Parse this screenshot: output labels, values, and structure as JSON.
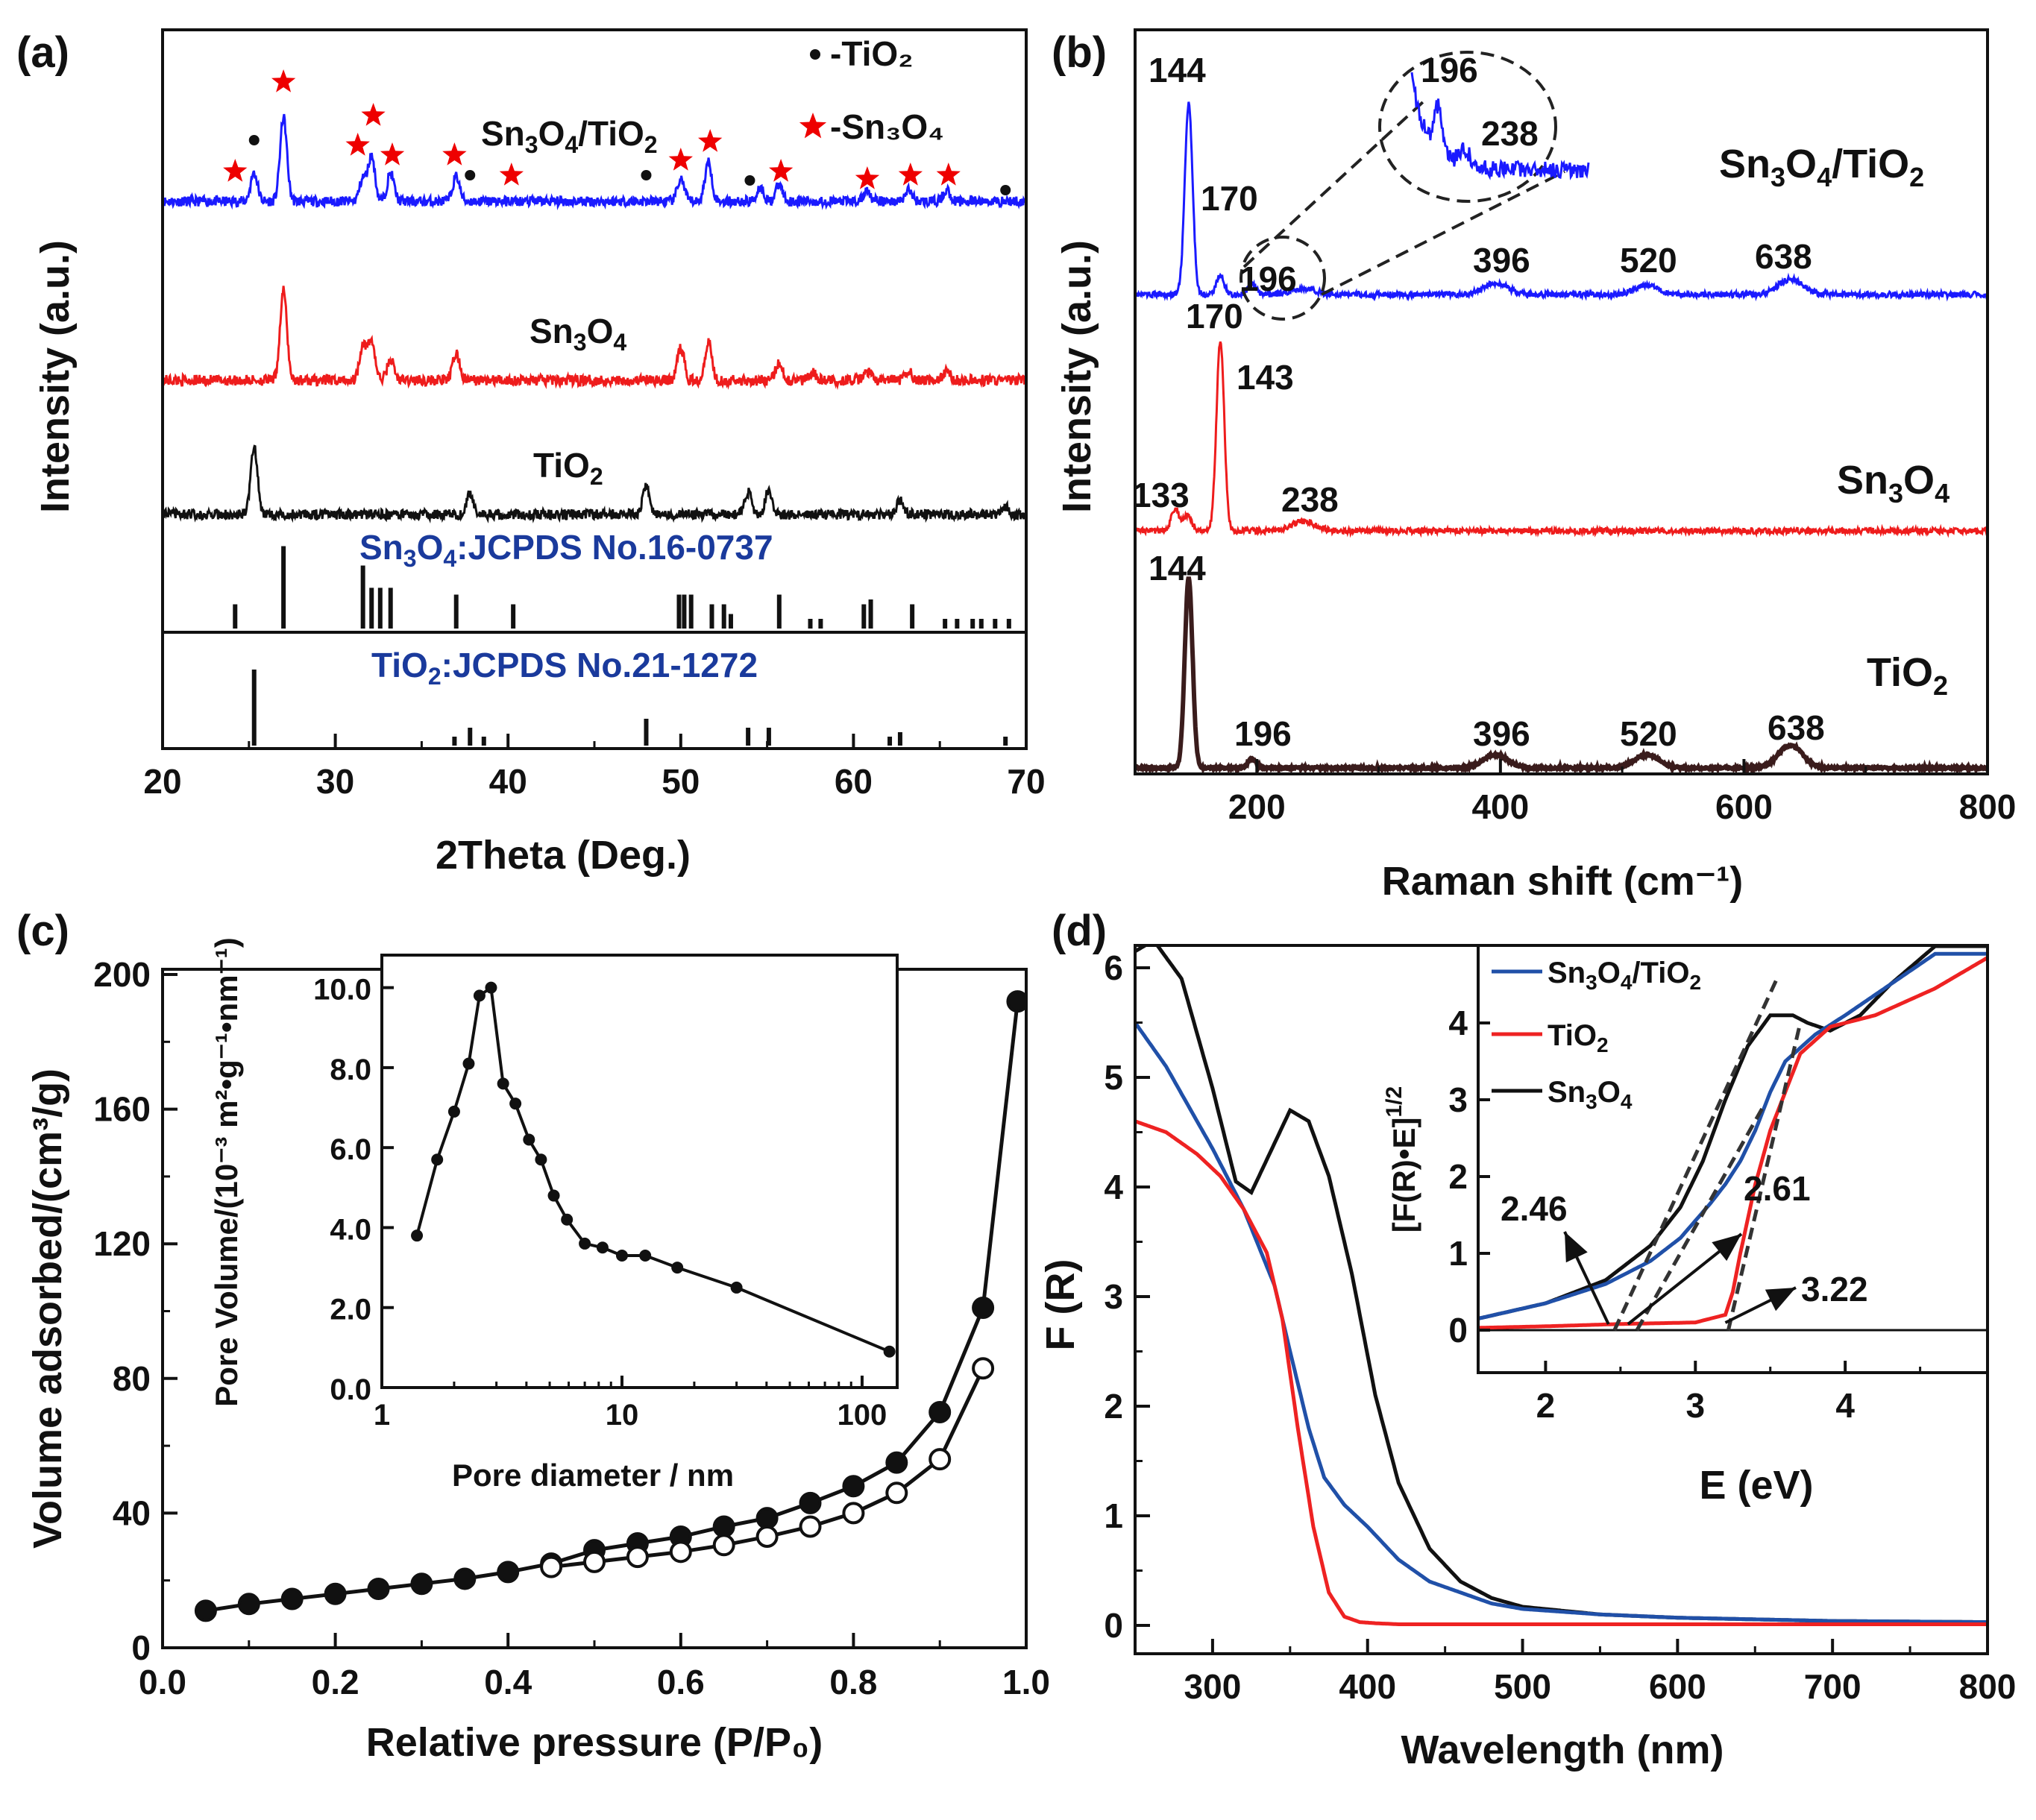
{
  "chart_data": [
    {
      "id": "a",
      "panel_label": "(a)",
      "type": "line",
      "xlabel": "2Theta (Deg.)",
      "ylabel": "Intensity (a.u.)",
      "xlim": [
        20,
        70
      ],
      "xticks": [
        20,
        30,
        40,
        50,
        60,
        70
      ],
      "series": [
        {
          "name": "Sn3O4/TiO2",
          "label": "Sn₃O₄/TiO₂",
          "color": "#1a1aff",
          "peaks": [
            [
              25.3,
              50
            ],
            [
              27.0,
              150
            ],
            [
              31.6,
              40
            ],
            [
              32.1,
              80
            ],
            [
              33.2,
              50
            ],
            [
              37.0,
              45
            ],
            [
              50.0,
              40
            ],
            [
              51.6,
              70
            ],
            [
              54.6,
              25
            ],
            [
              55.7,
              30
            ],
            [
              60.8,
              20
            ],
            [
              63.2,
              20
            ],
            [
              65.4,
              20
            ]
          ]
        },
        {
          "name": "Sn3O4",
          "label": "Sn₃O₄",
          "color": "#ee1c1c",
          "peaks": [
            [
              27.0,
              150
            ],
            [
              31.6,
              60
            ],
            [
              32.1,
              65
            ],
            [
              33.2,
              35
            ],
            [
              37.0,
              45
            ],
            [
              50.0,
              55
            ],
            [
              51.6,
              65
            ],
            [
              55.7,
              30
            ],
            [
              57.6,
              15
            ],
            [
              60.8,
              15
            ],
            [
              63.2,
              15
            ],
            [
              65.4,
              15
            ]
          ]
        },
        {
          "name": "TiO2",
          "label": "TiO₂",
          "color": "#111111",
          "peaks": [
            [
              25.3,
              120
            ],
            [
              37.8,
              40
            ],
            [
              48.0,
              50
            ],
            [
              53.9,
              40
            ],
            [
              55.1,
              45
            ],
            [
              62.7,
              25
            ],
            [
              68.8,
              15
            ]
          ]
        }
      ],
      "legend": [
        {
          "marker": "dot",
          "label": "-TiO₂"
        },
        {
          "marker": "star",
          "label": "-Sn₃O₄"
        }
      ],
      "marker_labels": {
        "star_positions": [
          24.2,
          27.0,
          31.3,
          32.2,
          33.3,
          36.9,
          40.2,
          50.0,
          51.7,
          55.8,
          60.8,
          63.3,
          65.5
        ],
        "dot_positions": [
          25.3,
          37.8,
          48.0,
          54.0,
          68.8
        ]
      },
      "references": [
        {
          "label": "Sn₃O₄:JCPDS No.16-0737",
          "color": "#1a3a9c",
          "lines": [
            [
              24.2,
              25
            ],
            [
              27.0,
              85
            ],
            [
              31.6,
              65
            ],
            [
              32.1,
              42
            ],
            [
              32.6,
              42
            ],
            [
              33.2,
              42
            ],
            [
              37.0,
              35
            ],
            [
              40.3,
              25
            ],
            [
              49.9,
              35
            ],
            [
              50.2,
              35
            ],
            [
              50.6,
              35
            ],
            [
              51.8,
              25
            ],
            [
              52.5,
              25
            ],
            [
              52.9,
              15
            ],
            [
              55.7,
              35
            ],
            [
              57.5,
              10
            ],
            [
              58.1,
              10
            ],
            [
              60.6,
              25
            ],
            [
              61.0,
              30
            ],
            [
              63.4,
              25
            ],
            [
              65.3,
              10
            ],
            [
              66.0,
              10
            ],
            [
              66.9,
              10
            ],
            [
              67.4,
              10
            ],
            [
              68.2,
              10
            ],
            [
              69.0,
              10
            ]
          ]
        },
        {
          "label": "TiO₂:JCPDS No.21-1272",
          "color": "#1a3a9c",
          "lines": [
            [
              25.3,
              85
            ],
            [
              36.9,
              10
            ],
            [
              37.8,
              20
            ],
            [
              38.6,
              10
            ],
            [
              48.0,
              30
            ],
            [
              53.9,
              20
            ],
            [
              55.1,
              20
            ],
            [
              62.1,
              10
            ],
            [
              62.7,
              15
            ],
            [
              68.8,
              10
            ]
          ]
        }
      ]
    },
    {
      "id": "b",
      "panel_label": "(b)",
      "type": "line",
      "xlabel": "Raman shift (cm⁻¹)",
      "ylabel": "Intensity (a.u.)",
      "xlim": [
        100,
        800
      ],
      "xticks": [
        200,
        400,
        600,
        800
      ],
      "series": [
        {
          "name": "Sn3O4/TiO2",
          "label": "Sn₃O₄/TiO₂",
          "color": "#1a1aff",
          "peaks": [
            [
              144,
              100
            ],
            [
              170,
              10
            ],
            [
              196,
              6
            ],
            [
              238,
              3
            ],
            [
              396,
              6
            ],
            [
              520,
              5
            ],
            [
              638,
              8
            ]
          ],
          "annotations": [
            "144",
            "170",
            "196",
            "396",
            "520",
            "638"
          ]
        },
        {
          "name": "Sn3O4",
          "label": "Sn₃O₄",
          "color": "#ee1c1c",
          "peaks": [
            [
              133,
              12
            ],
            [
              143,
              8
            ],
            [
              170,
              100
            ],
            [
              238,
              5
            ]
          ],
          "annotations": [
            "170",
            "143",
            "133",
            "238"
          ]
        },
        {
          "name": "TiO2",
          "label": "TiO₂",
          "color": "#3a1c1c",
          "peaks": [
            [
              144,
              100
            ],
            [
              196,
              5
            ],
            [
              396,
              7
            ],
            [
              520,
              7
            ],
            [
              638,
              12
            ]
          ],
          "annotations": [
            "144",
            "196",
            "396",
            "520",
            "638"
          ]
        }
      ],
      "zoom_annotations": [
        "196",
        "238"
      ]
    },
    {
      "id": "c",
      "panel_label": "(c)",
      "type": "scatter",
      "xlabel": "Relative pressure (P/P₀)",
      "ylabel": "Volume adsorbed/(cm³/g)",
      "xlim": [
        0.0,
        1.0
      ],
      "ylim": [
        0,
        200
      ],
      "xticks": [
        "0.0",
        "0.2",
        "0.4",
        "0.6",
        "0.8",
        "1.0"
      ],
      "yticks": [
        0,
        40,
        80,
        120,
        160,
        200
      ],
      "series": [
        {
          "name": "adsorption",
          "marker": "filled",
          "x": [
            0.05,
            0.1,
            0.15,
            0.2,
            0.25,
            0.3,
            0.35,
            0.4,
            0.45,
            0.5,
            0.55,
            0.6,
            0.65,
            0.7,
            0.75,
            0.8,
            0.85,
            0.9,
            0.95,
            0.99
          ],
          "y": [
            11,
            13,
            14.5,
            16,
            17.5,
            19,
            20.5,
            22.5,
            25,
            29,
            31,
            33,
            36,
            38.5,
            43,
            48,
            55,
            70,
            101,
            192
          ]
        },
        {
          "name": "desorption",
          "marker": "open",
          "x": [
            0.45,
            0.5,
            0.55,
            0.6,
            0.65,
            0.7,
            0.75,
            0.8,
            0.85,
            0.9,
            0.95
          ],
          "y": [
            24,
            25.5,
            27,
            28.5,
            30.5,
            33,
            36,
            40,
            46,
            56,
            83
          ]
        }
      ],
      "inset": {
        "type": "line",
        "xlabel": "Pore diameter / nm",
        "ylabel": "Pore Volume/(10⁻³ m²•g⁻¹•nm⁻¹)",
        "xscale": "log",
        "xlim": [
          1,
          140
        ],
        "ylim": [
          0,
          11
        ],
        "xticks": [
          "1",
          "10",
          "100"
        ],
        "yticks": [
          "0.0",
          "2.0",
          "4.0",
          "6.0",
          "8.0",
          "10.0"
        ],
        "x": [
          1.4,
          1.7,
          2.0,
          2.3,
          2.55,
          2.85,
          3.2,
          3.6,
          4.1,
          4.6,
          5.2,
          5.9,
          7.0,
          8.3,
          10.0,
          12.5,
          17.0,
          30.0,
          130.0
        ],
        "y": [
          3.8,
          5.7,
          6.9,
          8.1,
          9.8,
          10.0,
          7.6,
          7.1,
          6.2,
          5.7,
          4.8,
          4.2,
          3.6,
          3.5,
          3.3,
          3.3,
          3.0,
          2.5,
          0.9
        ]
      }
    },
    {
      "id": "d",
      "panel_label": "(d)",
      "type": "line",
      "xlabel": "Wavelength (nm)",
      "ylabel": "F (R)",
      "xlim": [
        250,
        800
      ],
      "ylim": [
        -0.3,
        6.5
      ],
      "xticks": [
        300,
        400,
        500,
        600,
        700,
        800
      ],
      "yticks": [
        0,
        1,
        2,
        3,
        4,
        5,
        6
      ],
      "series": [
        {
          "name": "Sn3O4",
          "color": "#111111",
          "x": [
            250,
            262,
            280,
            300,
            315,
            325,
            335,
            350,
            362,
            375,
            390,
            405,
            420,
            440,
            460,
            480,
            500,
            550,
            600,
            700,
            800
          ],
          "y": [
            6.15,
            6.25,
            5.9,
            4.9,
            4.05,
            3.95,
            4.25,
            4.7,
            4.6,
            4.1,
            3.2,
            2.1,
            1.3,
            0.7,
            0.4,
            0.25,
            0.17,
            0.1,
            0.07,
            0.04,
            0.03
          ]
        },
        {
          "name": "Sn3O4/TiO2",
          "color": "#2050a8",
          "x": [
            250,
            270,
            300,
            320,
            340,
            350,
            362,
            372,
            385,
            400,
            420,
            440,
            460,
            480,
            500,
            550,
            600,
            700,
            800
          ],
          "y": [
            5.5,
            5.1,
            4.35,
            3.8,
            3.1,
            2.5,
            1.8,
            1.35,
            1.1,
            0.9,
            0.6,
            0.4,
            0.3,
            0.2,
            0.15,
            0.1,
            0.07,
            0.04,
            0.03
          ]
        },
        {
          "name": "TiO2",
          "color": "#ee2222",
          "x": [
            250,
            270,
            290,
            305,
            320,
            335,
            345,
            355,
            365,
            375,
            385,
            395,
            405,
            420,
            500,
            600,
            700,
            800
          ],
          "y": [
            4.6,
            4.5,
            4.3,
            4.1,
            3.8,
            3.4,
            2.8,
            1.8,
            0.9,
            0.3,
            0.08,
            0.03,
            0.02,
            0.01,
            0.01,
            0.01,
            0.01,
            0.01
          ]
        }
      ],
      "inset": {
        "xlabel": "E (eV)",
        "ylabel": "[F(R)•E]^1/2",
        "xlim": [
          1.55,
          4.95
        ],
        "ylim": [
          -0.4,
          4.95
        ],
        "xticks": [
          2,
          3,
          4
        ],
        "yticks": [
          0,
          1,
          2,
          3,
          4
        ],
        "legend": [
          {
            "label": "Sn₃O₄/TiO₂",
            "color": "#2050a8"
          },
          {
            "label": "TiO₂",
            "color": "#ee2222"
          },
          {
            "label": "Sn₃O₄",
            "color": "#111111"
          }
        ],
        "series": [
          {
            "name": "Sn3O4",
            "color": "#111111",
            "x": [
              1.55,
              2.0,
              2.4,
              2.7,
              2.9,
              3.05,
              3.2,
              3.35,
              3.5,
              3.65,
              3.75,
              3.9,
              4.1,
              4.3,
              4.6
            ],
            "y": [
              0.15,
              0.35,
              0.65,
              1.1,
              1.6,
              2.2,
              3.0,
              3.7,
              4.1,
              4.1,
              4.0,
              3.9,
              4.1,
              4.5,
              5.0
            ]
          },
          {
            "name": "Sn3O4/TiO2",
            "color": "#2050a8",
            "x": [
              1.55,
              2.0,
              2.4,
              2.7,
              2.9,
              3.1,
              3.2,
              3.3,
              3.4,
              3.5,
              3.6,
              3.8,
              4.0,
              4.3,
              4.6
            ],
            "y": [
              0.15,
              0.35,
              0.6,
              0.9,
              1.2,
              1.65,
              1.9,
              2.2,
              2.6,
              3.1,
              3.5,
              3.85,
              4.1,
              4.5,
              4.9
            ]
          },
          {
            "name": "TiO2",
            "color": "#ee2222",
            "x": [
              1.55,
              2.0,
              2.5,
              3.0,
              3.2,
              3.25,
              3.3,
              3.4,
              3.5,
              3.6,
              3.7,
              3.9,
              4.2,
              4.6,
              4.95
            ],
            "y": [
              0.03,
              0.05,
              0.08,
              0.1,
              0.2,
              0.5,
              1.0,
              1.9,
              2.6,
              3.1,
              3.6,
              3.95,
              4.1,
              4.45,
              4.85
            ]
          }
        ],
        "band_gaps": [
          {
            "value": "2.46"
          },
          {
            "value": "2.61"
          },
          {
            "value": "3.22"
          }
        ]
      }
    }
  ]
}
